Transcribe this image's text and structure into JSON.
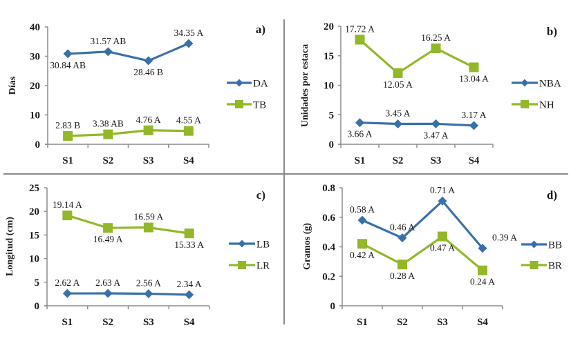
{
  "figure": {
    "colors": {
      "blue": "#3a70a8",
      "green": "#92b82a",
      "text": "#1a1a1a",
      "axis": "#8c8c8c"
    }
  },
  "chart_data": [
    {
      "id": "a",
      "type": "line",
      "panel_label": "a)",
      "ylabel": "Días",
      "xlabel": "",
      "categories": [
        "S1",
        "S2",
        "S3",
        "S4"
      ],
      "ylim": [
        0,
        40
      ],
      "yticks": [
        "0",
        "10",
        "20",
        "30",
        "40"
      ],
      "ytick_values": [
        0,
        10,
        20,
        30,
        40
      ],
      "grid": false,
      "legend_position": "right",
      "series": [
        {
          "name": "DA",
          "marker": "diamond",
          "color": "#3a70a8",
          "values": [
            30.84,
            31.57,
            28.46,
            34.35
          ],
          "labels": [
            "30.84 AB",
            "31.57 AB",
            "28.46 B",
            "34.35 A"
          ],
          "label_pos": [
            "below",
            "above",
            "below",
            "above"
          ]
        },
        {
          "name": "TB",
          "marker": "square",
          "color": "#92b82a",
          "values": [
            2.83,
            3.38,
            4.76,
            4.55
          ],
          "labels": [
            "2.83 B",
            "3.38 AB",
            "4.76 A",
            "4.55 A"
          ],
          "label_pos": [
            "above",
            "above",
            "above",
            "above"
          ]
        }
      ]
    },
    {
      "id": "b",
      "type": "line",
      "panel_label": "b)",
      "ylabel": "Unidades por estaca",
      "xlabel": "",
      "categories": [
        "S1",
        "S2",
        "S3",
        "S4"
      ],
      "ylim": [
        0,
        20
      ],
      "yticks": [
        "0",
        "5",
        "10",
        "15",
        "20"
      ],
      "ytick_values": [
        0,
        5,
        10,
        15,
        20
      ],
      "grid": false,
      "legend_position": "right",
      "series": [
        {
          "name": "NBA",
          "marker": "diamond",
          "color": "#3a70a8",
          "values": [
            3.66,
            3.45,
            3.47,
            3.17
          ],
          "labels": [
            "3.66 A",
            "3.45 A",
            "3.47 A",
            "3.17 A"
          ],
          "label_pos": [
            "below",
            "above",
            "below",
            "above"
          ]
        },
        {
          "name": "NH",
          "marker": "square",
          "color": "#92b82a",
          "values": [
            17.72,
            12.05,
            16.25,
            13.04
          ],
          "labels": [
            "17.72 A",
            "12.05 A",
            "16.25 A",
            "13.04 A"
          ],
          "label_pos": [
            "above",
            "below",
            "above",
            "below"
          ]
        }
      ]
    },
    {
      "id": "c",
      "type": "line",
      "panel_label": "c)",
      "ylabel": "Longitud (cm)",
      "xlabel": "",
      "categories": [
        "S1",
        "S2",
        "S3",
        "S4"
      ],
      "ylim": [
        0,
        25
      ],
      "yticks": [
        "0",
        "5",
        "10",
        "15",
        "20",
        "25"
      ],
      "ytick_values": [
        0,
        5,
        10,
        15,
        20,
        25
      ],
      "grid": false,
      "legend_position": "right",
      "series": [
        {
          "name": "LB",
          "marker": "diamond",
          "color": "#3a70a8",
          "values": [
            2.62,
            2.63,
            2.56,
            2.34
          ],
          "labels": [
            "2.62 A",
            "2.63 A",
            "2.56 A",
            "2.34 A"
          ],
          "label_pos": [
            "above",
            "above",
            "above",
            "above"
          ]
        },
        {
          "name": "LR",
          "marker": "square",
          "color": "#92b82a",
          "values": [
            19.14,
            16.49,
            16.59,
            15.33
          ],
          "labels": [
            "19.14 A",
            "16.49 A",
            "16.59 A",
            "15.33 A"
          ],
          "label_pos": [
            "above",
            "below",
            "above",
            "below"
          ]
        }
      ]
    },
    {
      "id": "d",
      "type": "line",
      "panel_label": "d)",
      "ylabel": "Gramos (g)",
      "xlabel": "",
      "categories": [
        "S1",
        "S2",
        "S3",
        "S4"
      ],
      "ylim": [
        0,
        0.8
      ],
      "yticks": [
        "0",
        "0.2",
        "0.4",
        "0.6",
        "0.8"
      ],
      "ytick_values": [
        0,
        0.2,
        0.4,
        0.6,
        0.8
      ],
      "grid": false,
      "legend_position": "right",
      "series": [
        {
          "name": "BB",
          "marker": "diamond",
          "color": "#3a70a8",
          "values": [
            0.58,
            0.46,
            0.71,
            0.39
          ],
          "labels": [
            "0.58 A",
            "0.46 A",
            "0.71 A",
            "0.39 A"
          ],
          "label_pos": [
            "above",
            "above",
            "above",
            "above-right"
          ]
        },
        {
          "name": "BR",
          "marker": "square",
          "color": "#92b82a",
          "values": [
            0.42,
            0.28,
            0.47,
            0.24
          ],
          "labels": [
            "0.42 A",
            "0.28 A",
            "0.47 A",
            "0.24 A"
          ],
          "label_pos": [
            "below",
            "below",
            "below",
            "below"
          ]
        }
      ]
    }
  ]
}
